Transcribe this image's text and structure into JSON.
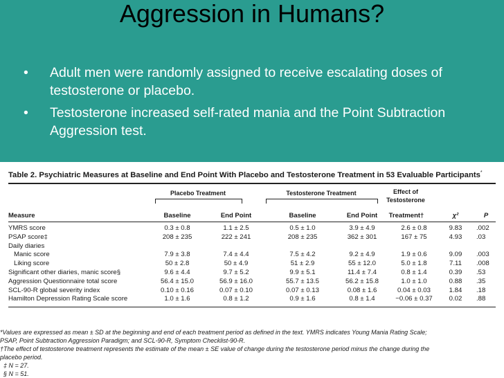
{
  "slide": {
    "title": "Aggression in Humans?",
    "bullet_glyph": "•",
    "bullets": [
      "Adult men were randomly assigned to receive escalating doses of testosterone or placebo.",
      "Testosterone increased self-rated mania and the Point Subtraction Aggression test."
    ]
  },
  "table": {
    "title": "Table 2. Psychiatric Measures at Baseline and End Point With Placebo and Testosterone Treatment in 53 Evaluable Participants",
    "title_mark": "*",
    "groups": {
      "placebo": "Placebo Treatment",
      "testosterone": "Testosterone Treatment",
      "effect_l1": "Effect of",
      "effect_l2": "Testosterone",
      "effect_l3": "Treatment†"
    },
    "columns": {
      "measure": "Measure",
      "baseline_p": "Baseline",
      "end_p": "End Point",
      "baseline_t": "Baseline",
      "end_t": "End Point",
      "chi": "χ²",
      "p": "P"
    },
    "rows": [
      [
        "YMRS score",
        "0.3 ± 0.8",
        "1.1 ± 2.5",
        "0.5 ± 1.0",
        "3.9 ± 4.9",
        "2.6 ± 0.8",
        "9.83",
        ".002"
      ],
      [
        "PSAP score‡",
        "208 ± 235",
        "222 ± 241",
        "208 ± 235",
        "362 ± 301",
        "167 ± 75",
        "4.93",
        ".03"
      ],
      [
        "Daily diaries",
        "",
        "",
        "",
        "",
        "",
        "",
        ""
      ],
      [
        "   Manic score",
        "7.9 ± 3.8",
        "7.4 ± 4.4",
        "7.5 ± 4.2",
        "9.2 ± 4.9",
        "1.9 ± 0.6",
        "9.09",
        ".003"
      ],
      [
        "   Liking score",
        "50 ± 2.8",
        "50 ± 4.9",
        "51 ± 2.9",
        "55 ± 12.0",
        "5.0 ± 1.8",
        "7.11",
        ".008"
      ],
      [
        "Significant other diaries, manic score§",
        "9.6 ± 4.4",
        "9.7 ± 5.2",
        "9.9 ± 5.1",
        "11.4 ± 7.4",
        "0.8 ± 1.4",
        "0.39",
        ".53"
      ],
      [
        "Aggression Questionnaire total score",
        "56.4 ± 15.0",
        "56.9 ± 16.0",
        "55.7 ± 13.5",
        "56.2 ± 15.8",
        "1.0 ± 1.0",
        "0.88",
        ".35"
      ],
      [
        "SCL-90-R global severity index",
        "0.10 ± 0.16",
        "0.07 ± 0.10",
        "0.07 ± 0.13",
        "0.08 ± 1.6",
        "0.04 ± 0.03",
        "1.84",
        ".18"
      ],
      [
        "Hamilton Depression Rating Scale score",
        "1.0 ± 1.6",
        "0.8 ± 1.2",
        "0.9 ± 1.6",
        "0.8 ± 1.4",
        "−0.06 ± 0.37",
        "0.02",
        ".88"
      ]
    ],
    "footnotes": [
      "*Values are expressed as mean ± SD at the beginning and end of each treatment period as defined in the text. YMRS indicates Young Mania Rating Scale;",
      "PSAP, Point Subtraction Aggression Paradigm; and SCL-90-R, Symptom Checklist-90-R.",
      "  †The effect of testosterone treatment represents the estimate of the mean ± SE value of change during the testosterone period minus the change during the",
      "placebo period.",
      "  ‡ N = 27.",
      "  § N = 51."
    ]
  }
}
